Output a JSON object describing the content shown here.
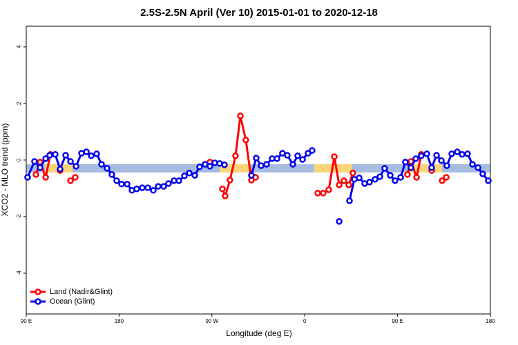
{
  "chart_data": {
    "type": "line",
    "title": "2.5S-2.5N April (Ver 10)   2015-01-01 to 2020-12-18",
    "x_label": "Longitude (deg E)",
    "y_label": "XCO2 - MLO trend (ppm)",
    "xlim": [
      90,
      540
    ],
    "ylim": [
      -5.44,
      4.73
    ],
    "xticks": [
      {
        "value": 90,
        "label": "90 E"
      },
      180,
      {
        "value": 270,
        "label": "90 W"
      },
      {
        "value": 360,
        "label": "0"
      },
      {
        "value": 450,
        "label": "90 E"
      },
      {
        "value": 540,
        "label": "180"
      }
    ],
    "yticks": [
      -4,
      -2,
      0,
      2,
      4
    ],
    "legend": "bottom-left",
    "series": [
      {
        "name": "Land (Nadir&Glint)",
        "color": "#ff0000",
        "x": [
          99.4,
          103.4,
          108.8,
          113.4,
          null,
          122.8,
          null,
          132.9,
          137.5,
          null,
          268.1,
          null,
          280.2,
          282.9,
          287.5,
          292.9,
          297.6,
          302.9,
          308.3,
          312.3,
          null,
          372.6,
          377.9,
          383.3,
          388.7,
          393.4,
          398.0,
          402.7,
          406.7,
          null,
          459.6,
          463.0,
          468.4,
          473.0,
          null,
          483.1,
          null,
          493.2,
          497.2
        ],
        "values": [
          -0.51,
          -0.07,
          -0.61,
          0.2,
          null,
          -0.37,
          null,
          -0.73,
          -0.61,
          null,
          -0.07,
          null,
          -1.02,
          -1.27,
          -0.71,
          0.15,
          1.56,
          0.71,
          -0.71,
          -0.61,
          null,
          -1.17,
          -1.17,
          -1.05,
          0.12,
          -0.88,
          -0.73,
          -0.88,
          -0.46,
          null,
          -0.51,
          -0.05,
          -0.61,
          0.2,
          null,
          -0.37,
          null,
          -0.73,
          -0.61
        ]
      },
      {
        "name": "Ocean (Glint)",
        "color": "#0000ee",
        "x": [
          91.3,
          98.0,
          103.4,
          108.8,
          112.8,
          118.1,
          122.8,
          128.2,
          132.9,
          138.3,
          143.6,
          148.3,
          153.0,
          158.3,
          163.0,
          168.3,
          173.0,
          177.7,
          182.4,
          187.8,
          192.5,
          197.1,
          202.5,
          207.9,
          213.2,
          217.9,
          223.3,
          227.9,
          233.3,
          238.0,
          243.4,
          248.1,
          253.4,
          258.1,
          263.4,
          268.1,
          272.8,
          277.5,
          282.2,
          null,
          308.3,
          313.0,
          317.7,
          323.0,
          328.4,
          333.1,
          338.4,
          343.1,
          348.5,
          353.2,
          357.9,
          363.2,
          367.2,
          null,
          393.4,
          null,
          403.4,
          408.1,
          412.8,
          418.1,
          422.8,
          428.2,
          432.9,
          437.5,
          442.9,
          447.6,
          453.0,
          457.6,
          463.0,
          467.7,
          473.0,
          478.4,
          483.1,
          487.8,
          492.5,
          497.8,
          502.5,
          507.9,
          512.6,
          517.9,
          522.6,
          528.0,
          532.6,
          538.0
        ],
        "values": [
          -0.61,
          -0.05,
          -0.27,
          0.05,
          0.17,
          0.2,
          -0.32,
          0.17,
          -0.05,
          -0.22,
          0.24,
          0.29,
          0.15,
          0.22,
          -0.15,
          -0.29,
          -0.51,
          -0.73,
          -0.85,
          -0.85,
          -1.07,
          -1.02,
          -0.98,
          -0.98,
          -1.07,
          -0.93,
          -0.93,
          -0.83,
          -0.73,
          -0.73,
          -0.56,
          -0.46,
          -0.54,
          -0.24,
          -0.15,
          -0.22,
          -0.1,
          -0.12,
          -0.17,
          null,
          -0.54,
          0.07,
          -0.2,
          -0.15,
          0.05,
          0.05,
          0.24,
          0.17,
          -0.15,
          0.15,
          0.02,
          0.24,
          0.34,
          null,
          -2.17,
          null,
          -1.44,
          -0.68,
          -0.63,
          -0.83,
          -0.78,
          -0.68,
          -0.59,
          -0.29,
          -0.54,
          -0.73,
          -0.61,
          -0.07,
          -0.27,
          0.05,
          0.15,
          0.22,
          -0.27,
          0.17,
          -0.02,
          -0.2,
          0.22,
          0.29,
          0.2,
          0.22,
          -0.15,
          -0.27,
          -0.49,
          -0.73
        ]
      }
    ]
  }
}
